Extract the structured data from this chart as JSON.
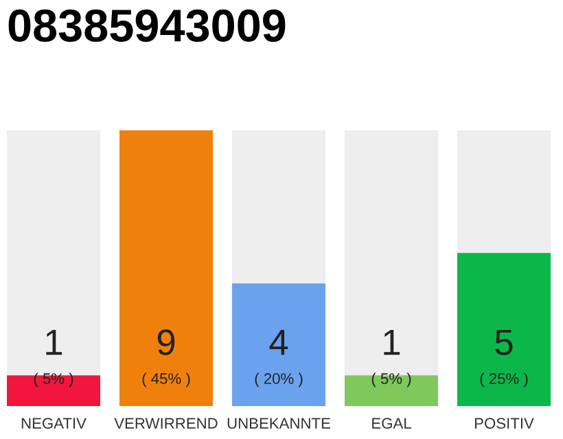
{
  "chart_data": {
    "type": "bar",
    "title": "08385943009",
    "categories": [
      "NEGATIV",
      "VERWIRREND",
      "UNBEKANNTE",
      "EGAL",
      "POSITIV"
    ],
    "values": [
      1,
      9,
      4,
      1,
      5
    ],
    "colors": [
      "#f2163c",
      "#f0800c",
      "#6aa2ee",
      "#7ec85c",
      "#0cb74a"
    ],
    "data_labels": true,
    "annotations": [
      "( 5% )",
      "( 45% )",
      "( 20% )",
      "( 5% )",
      "( 25% )"
    ],
    "grid": false,
    "legend": false
  }
}
